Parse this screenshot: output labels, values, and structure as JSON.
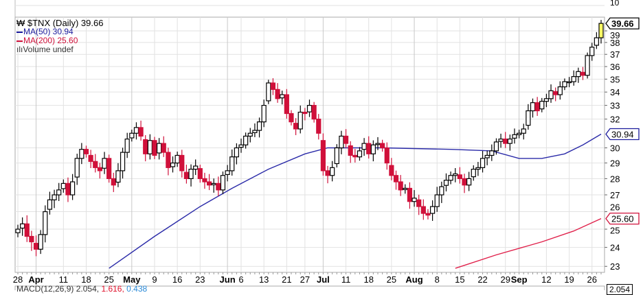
{
  "chart_data": {
    "type": "candlestick",
    "title": "$TNX (Daily) 39.66",
    "legend": {
      "main": "$TNX (Daily) 39.66",
      "ma50": "MA(50) 30.94",
      "ma200": "MA(200) 25.60",
      "volume": "Volume undef"
    },
    "colors": {
      "up": "#000000",
      "down": "#d0103a",
      "ma50": "#2a2aa8",
      "ma200": "#e0204a",
      "last": "#ffff66",
      "grid": "#e2e2e2"
    },
    "y_scale": "log",
    "ylim": [
      22.7,
      40.3
    ],
    "y_ticks": [
      23,
      24,
      25,
      26,
      27,
      28,
      29,
      30,
      32,
      33,
      34,
      35,
      36,
      37,
      38,
      39
    ],
    "top_panel_tick": "10",
    "closes": [
      25.0,
      25.3,
      24.6,
      24.3,
      23.9,
      24.7,
      26.0,
      26.7,
      27.0,
      27.3,
      27.7,
      27.0,
      27.8,
      29.3,
      29.9,
      29.6,
      29.1,
      28.7,
      28.5,
      29.3,
      28.0,
      27.6,
      28.5,
      29.7,
      30.6,
      31.0,
      31.4,
      30.8,
      29.6,
      30.5,
      29.5,
      30.3,
      29.7,
      28.7,
      29.0,
      29.5,
      28.5,
      28.0,
      28.6,
      28.8,
      28.0,
      27.8,
      27.6,
      27.7,
      27.3,
      28.2,
      28.5,
      29.4,
      30.0,
      30.2,
      30.8,
      31.0,
      31.2,
      31.8,
      33.0,
      34.7,
      34.2,
      33.5,
      33.8,
      32.4,
      31.8,
      31.3,
      32.5,
      32.4,
      33.0,
      32.0,
      31.0,
      28.5,
      28.2,
      28.7,
      30.0,
      30.8,
      30.3,
      29.5,
      29.4,
      29.8,
      30.3,
      29.6,
      30.2,
      30.3,
      30.0,
      29.0,
      28.2,
      27.8,
      27.3,
      27.4,
      26.6,
      26.8,
      26.3,
      25.9,
      25.8,
      26.3,
      27.0,
      27.5,
      27.9,
      28.2,
      28.3,
      28.0,
      27.6,
      28.0,
      28.6,
      28.7,
      29.3,
      29.5,
      29.8,
      30.4,
      30.6,
      30.3,
      30.6,
      30.9,
      31.0,
      31.3,
      32.6,
      33.2,
      32.6,
      33.3,
      33.5,
      34.1,
      33.8,
      34.4,
      34.8,
      34.8,
      35.2,
      35.6,
      35.3,
      36.9,
      37.6,
      38.4,
      39.66
    ],
    "ma50": [
      [
        20,
        22.9
      ],
      [
        30,
        24.6
      ],
      [
        40,
        26.3
      ],
      [
        47,
        27.4
      ],
      [
        55,
        28.6
      ],
      [
        63,
        29.6
      ],
      [
        68,
        30.0
      ],
      [
        80,
        30.0
      ],
      [
        95,
        29.9
      ],
      [
        104,
        29.8
      ],
      [
        110,
        29.3
      ],
      [
        115,
        29.3
      ],
      [
        120,
        29.6
      ],
      [
        124,
        30.2
      ],
      [
        128,
        30.94
      ]
    ],
    "ma200": [
      [
        96,
        22.9
      ],
      [
        105,
        23.6
      ],
      [
        115,
        24.3
      ],
      [
        122,
        24.9
      ],
      [
        128,
        25.6
      ]
    ],
    "x_ticks": [
      {
        "i": 0,
        "label": "28",
        "month": false
      },
      {
        "i": 4,
        "label": "Apr",
        "month": true
      },
      {
        "i": 10,
        "label": "11",
        "month": false
      },
      {
        "i": 15,
        "label": "18",
        "month": false
      },
      {
        "i": 20,
        "label": "25",
        "month": false
      },
      {
        "i": 25,
        "label": "May",
        "month": true
      },
      {
        "i": 30,
        "label": "9",
        "month": false
      },
      {
        "i": 35,
        "label": "16",
        "month": false
      },
      {
        "i": 40,
        "label": "23",
        "month": false
      },
      {
        "i": 46,
        "label": "Jun",
        "month": true
      },
      {
        "i": 49,
        "label": "6",
        "month": false
      },
      {
        "i": 54,
        "label": "13",
        "month": false
      },
      {
        "i": 59,
        "label": "21",
        "month": false
      },
      {
        "i": 63,
        "label": "27",
        "month": false
      },
      {
        "i": 67,
        "label": "Jul",
        "month": true
      },
      {
        "i": 72,
        "label": "11",
        "month": false
      },
      {
        "i": 77,
        "label": "18",
        "month": false
      },
      {
        "i": 82,
        "label": "25",
        "month": false
      },
      {
        "i": 87,
        "label": "Aug",
        "month": true
      },
      {
        "i": 92,
        "label": "8",
        "month": false
      },
      {
        "i": 97,
        "label": "15",
        "month": false
      },
      {
        "i": 102,
        "label": "22",
        "month": false
      },
      {
        "i": 107,
        "label": "29",
        "month": false
      },
      {
        "i": 110,
        "label": "Sep",
        "month": true
      },
      {
        "i": 116,
        "label": "12",
        "month": false
      },
      {
        "i": 121,
        "label": "19",
        "month": false
      },
      {
        "i": 126,
        "label": "26",
        "month": false
      }
    ],
    "tags": {
      "last": "39.66",
      "ma50": "30.94",
      "ma200": "25.60"
    }
  },
  "macd": {
    "label": "MACD(12,26,9)",
    "v1": "2.054,",
    "v2": "1.616,",
    "v3": "0.438",
    "tag": "2.054"
  }
}
